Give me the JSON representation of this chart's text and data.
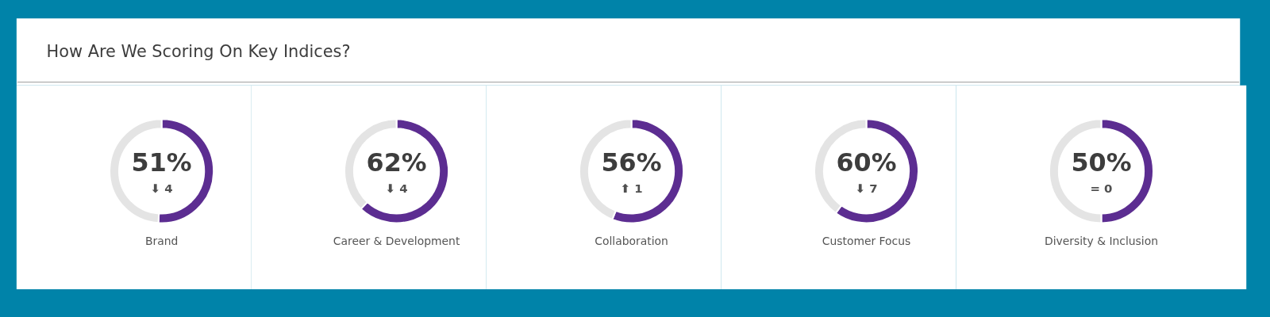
{
  "chart_data": [
    {
      "type": "donut",
      "title": "How Are We Scoring On Key Indices?",
      "categories": [
        "Brand",
        null
      ],
      "values": [
        51,
        49
      ],
      "colors": [
        "#5c2d91",
        "#e4e4e4"
      ],
      "value_labels": [
        "51%",
        null
      ],
      "annotations": [
        "⬇ 4"
      ]
    },
    {
      "type": "donut",
      "categories": [
        "Career & Development",
        null
      ],
      "values": [
        62,
        38
      ],
      "colors": [
        "#5c2d91",
        "#e4e4e4"
      ],
      "value_labels": [
        "62%",
        null
      ],
      "annotations": [
        "⬇ 4"
      ]
    },
    {
      "type": "donut",
      "categories": [
        "Collaboration",
        null
      ],
      "values": [
        56,
        44
      ],
      "colors": [
        "#5c2d91",
        "#e4e4e4"
      ],
      "value_labels": [
        "56%",
        null
      ],
      "annotations": [
        "⬆ 1"
      ]
    },
    {
      "type": "donut",
      "categories": [
        "Customer Focus",
        null
      ],
      "values": [
        60,
        40
      ],
      "colors": [
        "#5c2d91",
        "#e4e4e4"
      ],
      "value_labels": [
        "60%",
        null
      ],
      "annotations": [
        "⬇ 7"
      ]
    },
    {
      "type": "donut",
      "categories": [
        "Diversity & Inclusion",
        null
      ],
      "values": [
        50,
        50
      ],
      "colors": [
        "#5c2d91",
        "#e4e4e4"
      ],
      "value_labels": [
        "50%",
        null
      ],
      "annotations": [
        "= 0"
      ]
    }
  ]
}
